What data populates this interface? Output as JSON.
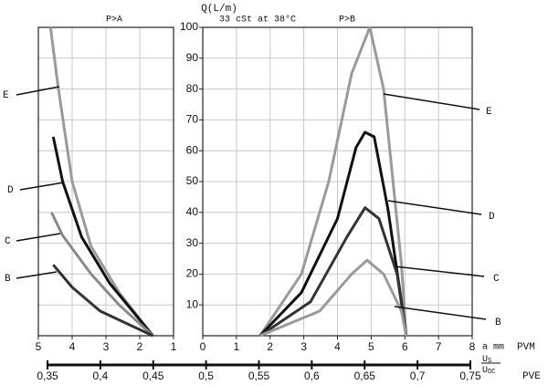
{
  "chart_data": [
    {
      "type": "line",
      "title": "P>A",
      "xlim": [
        5,
        1
      ],
      "xticks": [
        5,
        4,
        3,
        2,
        1
      ],
      "ylim": [
        0,
        100
      ],
      "grid": true,
      "series": [
        {
          "name": "E",
          "color": "#9a9a9a",
          "x": [
            4.64,
            4.42,
            4.0,
            3.44,
            2.61,
            1.61
          ],
          "values": [
            100,
            81,
            50,
            29,
            14,
            0
          ]
        },
        {
          "name": "D",
          "color": "#111111",
          "x": [
            4.56,
            4.28,
            3.72,
            2.89,
            1.61
          ],
          "values": [
            64.5,
            50,
            32,
            17,
            0
          ]
        },
        {
          "name": "C",
          "color": "#8a8a8a",
          "x": [
            4.61,
            4.28,
            3.44,
            2.61,
            1.61
          ],
          "values": [
            40,
            32.5,
            20,
            10,
            0
          ]
        },
        {
          "name": "B",
          "color": "#333333",
          "x": [
            4.56,
            4.33,
            4.0,
            3.17,
            1.61
          ],
          "values": [
            23,
            20,
            15.7,
            8,
            0
          ]
        }
      ]
    },
    {
      "type": "line",
      "title": "P>B",
      "subtitle": "33 cSt at 38°C",
      "ylabel": "Q(L/m)",
      "xlabel": "a mm",
      "xaxis_name": "PVM",
      "xlim": [
        0,
        8
      ],
      "xticks": [
        0,
        1,
        2,
        3,
        4,
        5,
        6,
        7,
        8
      ],
      "ylim": [
        0,
        100
      ],
      "yticks": [
        10,
        20,
        30,
        40,
        50,
        60,
        70,
        80,
        90,
        100
      ],
      "grid": true,
      "series": [
        {
          "name": "E",
          "color": "#9a9a9a",
          "x": [
            1.7,
            2.93,
            3.74,
            4.42,
            4.96,
            5.37,
            5.9,
            6.04
          ],
          "values": [
            0,
            20,
            50,
            85,
            100,
            80,
            23,
            0
          ]
        },
        {
          "name": "D",
          "color": "#111111",
          "x": [
            1.7,
            2.93,
            4.0,
            4.55,
            4.82,
            5.09,
            5.5,
            5.9,
            6.04
          ],
          "values": [
            0,
            14,
            38,
            61,
            66,
            64.5,
            41,
            11,
            0
          ]
        },
        {
          "name": "C",
          "color": "#333333",
          "x": [
            1.7,
            3.2,
            4.28,
            4.82,
            5.23,
            5.77,
            6.04
          ],
          "values": [
            0,
            11,
            32,
            41.5,
            38,
            20,
            0
          ]
        },
        {
          "name": "B",
          "color": "#9a9a9a",
          "x": [
            1.7,
            3.47,
            4.42,
            4.88,
            5.37,
            5.9,
            6.04
          ],
          "values": [
            0,
            8,
            20,
            24.5,
            20,
            8,
            0
          ]
        }
      ]
    }
  ],
  "pve_scale": {
    "name": "PVE",
    "numerator": "U",
    "numerator_sub": "S",
    "denominator": "U",
    "denominator_sub": "DC",
    "lim": [
      0.35,
      0.75
    ],
    "ticks": [
      {
        "value": 0.35,
        "label": "0,35"
      },
      {
        "value": 0.4,
        "label": "0,4"
      },
      {
        "value": 0.45,
        "label": "0,45"
      },
      {
        "value": 0.5,
        "label": "0,5"
      },
      {
        "value": 0.55,
        "label": "0,55"
      },
      {
        "value": 0.6,
        "label": "0,6"
      },
      {
        "value": 0.65,
        "label": "0,65"
      },
      {
        "value": 0.7,
        "label": "0,7"
      },
      {
        "value": 0.75,
        "label": "0,75"
      }
    ]
  }
}
